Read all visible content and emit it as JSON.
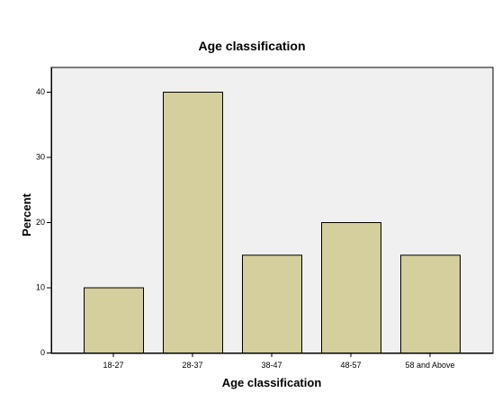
{
  "chart_data": {
    "type": "bar",
    "title": "Age classification",
    "xlabel": "Age classification",
    "ylabel": "Percent",
    "categories": [
      "18-27",
      "28-37",
      "38-47",
      "48-57",
      "58 and Above"
    ],
    "values": [
      10,
      40,
      15,
      20,
      15
    ],
    "ylim": [
      0,
      45
    ],
    "yticks": [
      "0",
      "10",
      "20",
      "30",
      "40"
    ],
    "grid": false,
    "legend": "none",
    "colors": {
      "bar_fill": "#d4cf9c",
      "bar_stroke": "#000000",
      "plot_background": "#f0f0f0",
      "page_background": "#ffffff"
    }
  }
}
